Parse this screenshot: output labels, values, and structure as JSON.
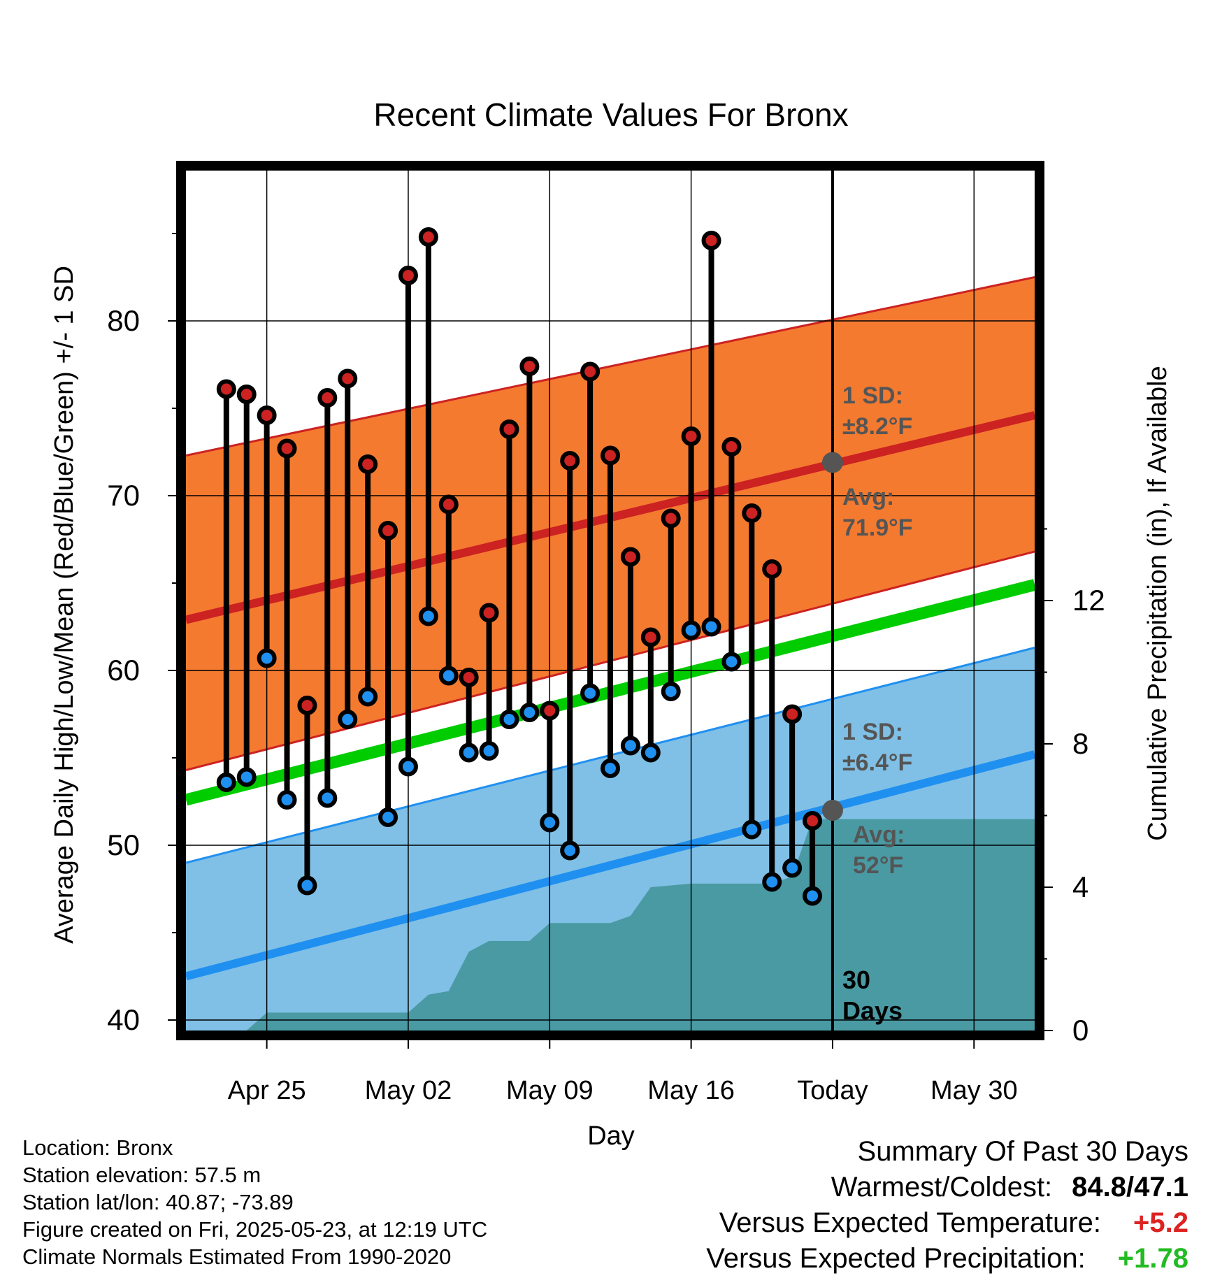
{
  "chart_data": {
    "title": "Recent Climate Values For Bronx",
    "xlabel": "Day",
    "ylabel": "Average Daily High/Low/Mean (Red/Blue/Green) +/- 1 SD",
    "y2label": "Cumulative Precipitation (in), If Available",
    "ylim": [
      39.4,
      88.6
    ],
    "y2lim": [
      0,
      24
    ],
    "x_range": [
      "2025-04-21",
      "2025-06-02"
    ],
    "y_ticks": [
      40,
      50,
      60,
      70,
      80
    ],
    "y2_ticks": [
      0,
      4,
      8,
      12
    ],
    "x_ticks": [
      {
        "date": "2025-04-25",
        "label": "Apr 25"
      },
      {
        "date": "2025-05-02",
        "label": "May 02"
      },
      {
        "date": "2025-05-09",
        "label": "May 09"
      },
      {
        "date": "2025-05-16",
        "label": "May 16"
      },
      {
        "date": "2025-05-23",
        "label": "Today"
      },
      {
        "date": "2025-05-30",
        "label": "May 30"
      }
    ],
    "grid": true,
    "today": "2025-05-23",
    "days_label": "30 Days",
    "normals": {
      "high_avg": [
        {
          "x": "2025-04-21",
          "y": 62.9
        },
        {
          "x": "2025-06-02",
          "y": 74.6
        }
      ],
      "high_sd_band": [
        {
          "x": "2025-04-21",
          "lo": 54.3,
          "hi": 72.3
        },
        {
          "x": "2025-06-02",
          "lo": 66.8,
          "hi": 82.5
        }
      ],
      "mean": [
        {
          "x": "2025-04-21",
          "y": 52.6
        },
        {
          "x": "2025-06-02",
          "y": 64.9
        }
      ],
      "low_avg": [
        {
          "x": "2025-04-21",
          "y": 42.5
        },
        {
          "x": "2025-06-02",
          "y": 55.2
        }
      ],
      "low_sd_band": [
        {
          "x": "2025-04-21",
          "lo": 39.4,
          "hi": 49.0
        },
        {
          "x": "2025-06-02",
          "lo": 39.4,
          "hi": 61.3
        }
      ]
    },
    "high_annotation": {
      "sd_text": "1 SD:",
      "sd_value": "±8.2°F",
      "avg_text": "Avg:",
      "avg_value": "71.9°F",
      "avg": 71.9
    },
    "low_annotation": {
      "sd_text": "1 SD:",
      "sd_value": "±6.4°F",
      "avg_text": "Avg:",
      "avg_value": "52°F",
      "avg": 52.0
    },
    "series": [
      {
        "name": "High",
        "color": "#cc2222",
        "points": [
          {
            "x": "2025-04-23",
            "y": 76.1
          },
          {
            "x": "2025-04-24",
            "y": 75.8
          },
          {
            "x": "2025-04-25",
            "y": 74.6
          },
          {
            "x": "2025-04-26",
            "y": 72.7
          },
          {
            "x": "2025-04-27",
            "y": 58.0
          },
          {
            "x": "2025-04-28",
            "y": 75.6
          },
          {
            "x": "2025-04-29",
            "y": 76.7
          },
          {
            "x": "2025-04-30",
            "y": 71.8
          },
          {
            "x": "2025-05-01",
            "y": 68.0
          },
          {
            "x": "2025-05-02",
            "y": 82.6
          },
          {
            "x": "2025-05-03",
            "y": 84.8
          },
          {
            "x": "2025-05-04",
            "y": 69.5
          },
          {
            "x": "2025-05-05",
            "y": 59.6
          },
          {
            "x": "2025-05-06",
            "y": 63.3
          },
          {
            "x": "2025-05-07",
            "y": 73.8
          },
          {
            "x": "2025-05-08",
            "y": 77.4
          },
          {
            "x": "2025-05-09",
            "y": 57.7
          },
          {
            "x": "2025-05-10",
            "y": 72.0
          },
          {
            "x": "2025-05-11",
            "y": 77.1
          },
          {
            "x": "2025-05-12",
            "y": 72.3
          },
          {
            "x": "2025-05-13",
            "y": 66.5
          },
          {
            "x": "2025-05-14",
            "y": 61.9
          },
          {
            "x": "2025-05-15",
            "y": 68.7
          },
          {
            "x": "2025-05-16",
            "y": 73.4
          },
          {
            "x": "2025-05-17",
            "y": 84.6
          },
          {
            "x": "2025-05-18",
            "y": 72.8
          },
          {
            "x": "2025-05-19",
            "y": 69.0
          },
          {
            "x": "2025-05-20",
            "y": 65.8
          },
          {
            "x": "2025-05-21",
            "y": 57.5
          },
          {
            "x": "2025-05-22",
            "y": 51.4
          }
        ]
      },
      {
        "name": "Low",
        "color": "#2090f0",
        "points": [
          {
            "x": "2025-04-23",
            "y": 53.6
          },
          {
            "x": "2025-04-24",
            "y": 53.9
          },
          {
            "x": "2025-04-25",
            "y": 60.7
          },
          {
            "x": "2025-04-26",
            "y": 52.6
          },
          {
            "x": "2025-04-27",
            "y": 47.7
          },
          {
            "x": "2025-04-28",
            "y": 52.7
          },
          {
            "x": "2025-04-29",
            "y": 57.2
          },
          {
            "x": "2025-04-30",
            "y": 58.5
          },
          {
            "x": "2025-05-01",
            "y": 51.6
          },
          {
            "x": "2025-05-02",
            "y": 54.5
          },
          {
            "x": "2025-05-03",
            "y": 63.1
          },
          {
            "x": "2025-05-04",
            "y": 59.7
          },
          {
            "x": "2025-05-05",
            "y": 55.3
          },
          {
            "x": "2025-05-06",
            "y": 55.4
          },
          {
            "x": "2025-05-07",
            "y": 57.2
          },
          {
            "x": "2025-05-08",
            "y": 57.6
          },
          {
            "x": "2025-05-09",
            "y": 51.3
          },
          {
            "x": "2025-05-10",
            "y": 49.7
          },
          {
            "x": "2025-05-11",
            "y": 58.7
          },
          {
            "x": "2025-05-12",
            "y": 54.4
          },
          {
            "x": "2025-05-13",
            "y": 55.7
          },
          {
            "x": "2025-05-14",
            "y": 55.3
          },
          {
            "x": "2025-05-15",
            "y": 58.8
          },
          {
            "x": "2025-05-16",
            "y": 62.3
          },
          {
            "x": "2025-05-17",
            "y": 62.5
          },
          {
            "x": "2025-05-18",
            "y": 60.5
          },
          {
            "x": "2025-05-19",
            "y": 50.9
          },
          {
            "x": "2025-05-20",
            "y": 47.9
          },
          {
            "x": "2025-05-21",
            "y": 48.7
          },
          {
            "x": "2025-05-22",
            "y": 47.1
          }
        ]
      }
    ],
    "precip": [
      {
        "x": "2025-04-21",
        "y": 0
      },
      {
        "x": "2025-04-24",
        "y": 0
      },
      {
        "x": "2025-04-25",
        "y": 0.5
      },
      {
        "x": "2025-05-02",
        "y": 0.5
      },
      {
        "x": "2025-05-03",
        "y": 1.0
      },
      {
        "x": "2025-05-04",
        "y": 1.1
      },
      {
        "x": "2025-05-05",
        "y": 2.2
      },
      {
        "x": "2025-05-06",
        "y": 2.5
      },
      {
        "x": "2025-05-08",
        "y": 2.5
      },
      {
        "x": "2025-05-09",
        "y": 3.0
      },
      {
        "x": "2025-05-12",
        "y": 3.0
      },
      {
        "x": "2025-05-13",
        "y": 3.2
      },
      {
        "x": "2025-05-14",
        "y": 4.0
      },
      {
        "x": "2025-05-15",
        "y": 4.05
      },
      {
        "x": "2025-05-16",
        "y": 4.1
      },
      {
        "x": "2025-05-20",
        "y": 4.1
      },
      {
        "x": "2025-05-21",
        "y": 4.3
      },
      {
        "x": "2025-05-22",
        "y": 5.9
      },
      {
        "x": "2025-06-02",
        "y": 5.9
      }
    ],
    "colors": {
      "high_band": "#f47a30",
      "high_band_edge": "#cc2222",
      "high_avg": "#cc2222",
      "mean": "#00cc00",
      "low_band": "#80c0e6",
      "low_band_edge": "#2090f0",
      "low_avg": "#2090f0",
      "precip": "#4a9aa4",
      "annotation": "#555555",
      "stem": "#000000"
    }
  },
  "info": {
    "location": "Location: Bronx",
    "elevation": "Station elevation: 57.5 m",
    "latlon": "Station lat/lon: 40.87; -73.89",
    "created": "Figure created on Fri, 2025-05-23, at 12:19 UTC",
    "normals": "Climate Normals Estimated From 1990-2020"
  },
  "summary": {
    "heading": "Summary Of Past 30 Days",
    "warm_cold_label": "Warmest/Coldest:",
    "warm_cold_value": "84.8/47.1",
    "temp_label": "Versus Expected Temperature:",
    "temp_value": "+5.2",
    "temp_color": "#dd2222",
    "precip_label": "Versus Expected Precipitation:",
    "precip_value": "+1.78",
    "precip_color": "#22bb22"
  }
}
